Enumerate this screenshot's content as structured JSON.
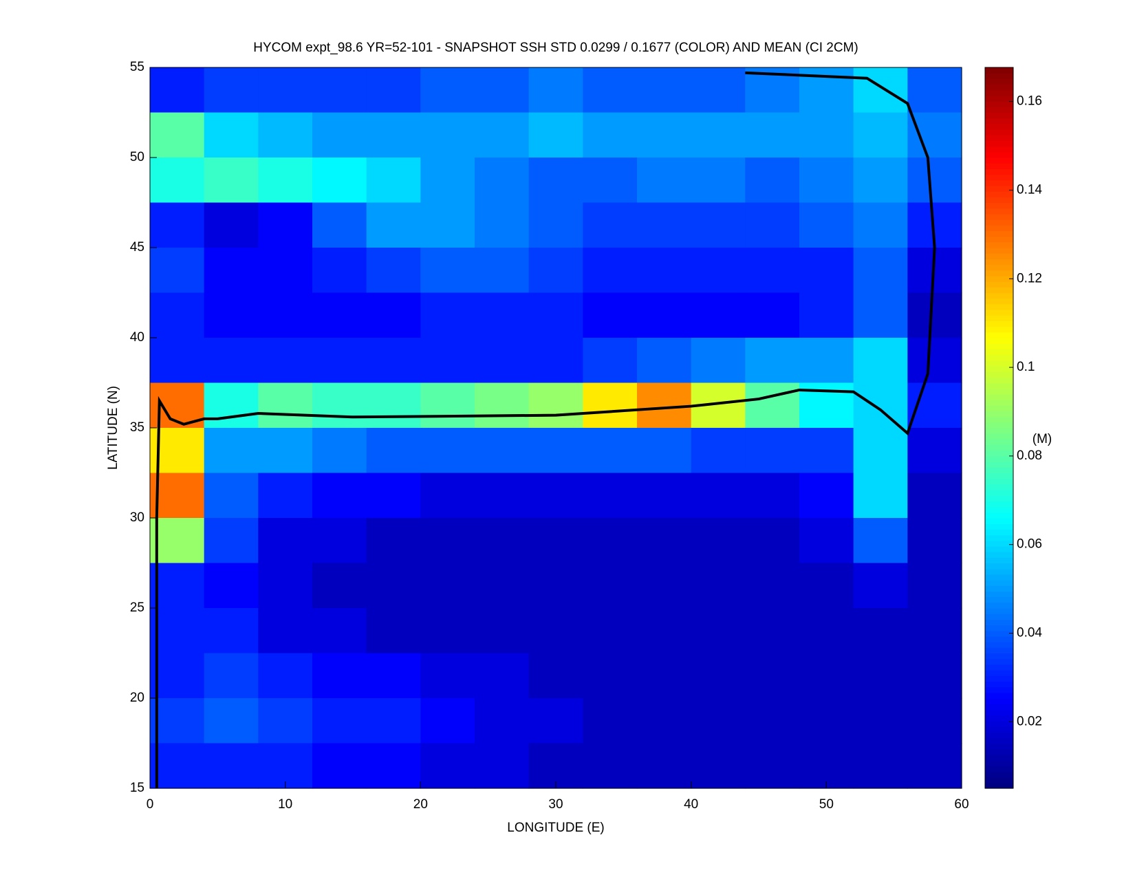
{
  "chart_data": {
    "type": "heatmap",
    "title": "HYCOM expt_98.6 YR=52-101 - SNAPSHOT SSH STD 0.0299 / 0.1677 (COLOR) AND MEAN (CI 2CM)",
    "x_label": "LONGITUDE (E)",
    "y_label": "LATITUDE (N)",
    "colorbar_label": "(M)",
    "colormap": "jet",
    "x": [
      2,
      6,
      10,
      14,
      18,
      22,
      26,
      30,
      34,
      38,
      42,
      46,
      50,
      54,
      58
    ],
    "y": [
      53.75,
      51.25,
      48.75,
      46.25,
      43.75,
      41.25,
      38.75,
      36.25,
      33.75,
      31.25,
      28.75,
      26.25,
      23.75,
      21.25,
      18.75,
      16.25
    ],
    "values": [
      [
        0.03,
        0.035,
        0.035,
        0.035,
        0.035,
        0.04,
        0.04,
        0.045,
        0.04,
        0.04,
        0.04,
        0.045,
        0.05,
        0.06,
        0.04
      ],
      [
        0.08,
        0.06,
        0.055,
        0.05,
        0.05,
        0.05,
        0.05,
        0.055,
        0.05,
        0.05,
        0.05,
        0.05,
        0.05,
        0.055,
        0.045
      ],
      [
        0.07,
        0.075,
        0.07,
        0.065,
        0.06,
        0.05,
        0.045,
        0.04,
        0.04,
        0.045,
        0.045,
        0.04,
        0.045,
        0.05,
        0.04
      ],
      [
        0.03,
        0.02,
        0.025,
        0.04,
        0.05,
        0.05,
        0.045,
        0.04,
        0.035,
        0.035,
        0.035,
        0.035,
        0.04,
        0.045,
        0.03
      ],
      [
        0.035,
        0.025,
        0.025,
        0.03,
        0.035,
        0.04,
        0.04,
        0.035,
        0.03,
        0.03,
        0.03,
        0.03,
        0.03,
        0.04,
        0.02
      ],
      [
        0.03,
        0.025,
        0.025,
        0.025,
        0.025,
        0.03,
        0.03,
        0.03,
        0.025,
        0.025,
        0.025,
        0.025,
        0.03,
        0.04,
        0.015
      ],
      [
        0.03,
        0.03,
        0.03,
        0.03,
        0.03,
        0.03,
        0.03,
        0.03,
        0.035,
        0.04,
        0.045,
        0.05,
        0.05,
        0.06,
        0.02
      ],
      [
        0.13,
        0.07,
        0.08,
        0.075,
        0.075,
        0.08,
        0.085,
        0.09,
        0.11,
        0.125,
        0.1,
        0.08,
        0.065,
        0.06,
        0.03
      ],
      [
        0.11,
        0.05,
        0.05,
        0.045,
        0.04,
        0.04,
        0.04,
        0.04,
        0.04,
        0.04,
        0.035,
        0.035,
        0.035,
        0.06,
        0.02
      ],
      [
        0.13,
        0.04,
        0.03,
        0.025,
        0.025,
        0.02,
        0.02,
        0.02,
        0.02,
        0.02,
        0.02,
        0.02,
        0.025,
        0.06,
        0.015
      ],
      [
        0.09,
        0.035,
        0.02,
        0.02,
        0.015,
        0.015,
        0.015,
        0.015,
        0.015,
        0.015,
        0.015,
        0.015,
        0.02,
        0.04,
        0.015
      ],
      [
        0.03,
        0.025,
        0.02,
        0.015,
        0.015,
        0.015,
        0.015,
        0.015,
        0.015,
        0.015,
        0.015,
        0.015,
        0.015,
        0.02,
        0.015
      ],
      [
        0.03,
        0.03,
        0.02,
        0.02,
        0.015,
        0.015,
        0.015,
        0.015,
        0.015,
        0.015,
        0.015,
        0.015,
        0.015,
        0.015,
        0.015
      ],
      [
        0.03,
        0.035,
        0.03,
        0.025,
        0.025,
        0.02,
        0.02,
        0.015,
        0.015,
        0.015,
        0.015,
        0.015,
        0.015,
        0.015,
        0.015
      ],
      [
        0.035,
        0.04,
        0.035,
        0.03,
        0.03,
        0.025,
        0.02,
        0.02,
        0.015,
        0.015,
        0.015,
        0.015,
        0.015,
        0.015,
        0.015
      ],
      [
        0.03,
        0.03,
        0.03,
        0.025,
        0.025,
        0.02,
        0.02,
        0.015,
        0.015,
        0.015,
        0.015,
        0.015,
        0.015,
        0.015,
        0.015
      ]
    ],
    "contour": {
      "x": [
        0.5,
        0.5,
        0.7,
        1.5,
        2.5,
        4,
        5,
        8,
        15,
        30,
        40,
        45,
        48,
        52,
        54,
        56,
        57.5,
        58,
        57.5,
        56,
        53,
        44
      ],
      "y": [
        15,
        30,
        36.5,
        35.5,
        35.2,
        35.5,
        35.5,
        35.8,
        35.6,
        35.7,
        36.2,
        36.6,
        37.1,
        37,
        36,
        34.7,
        38,
        45,
        50,
        53,
        54.4,
        54.7
      ]
    },
    "xlim": [
      0,
      60
    ],
    "xticks": [
      0,
      10,
      20,
      30,
      40,
      50,
      60
    ],
    "ylim": [
      15,
      55
    ],
    "yticks": [
      15,
      20,
      25,
      30,
      35,
      40,
      45,
      50,
      55
    ],
    "clim": [
      0.005,
      0.1677
    ],
    "cticks": [
      0.02,
      0.04,
      0.06,
      0.08,
      0.1,
      0.12,
      0.14,
      0.16
    ]
  }
}
